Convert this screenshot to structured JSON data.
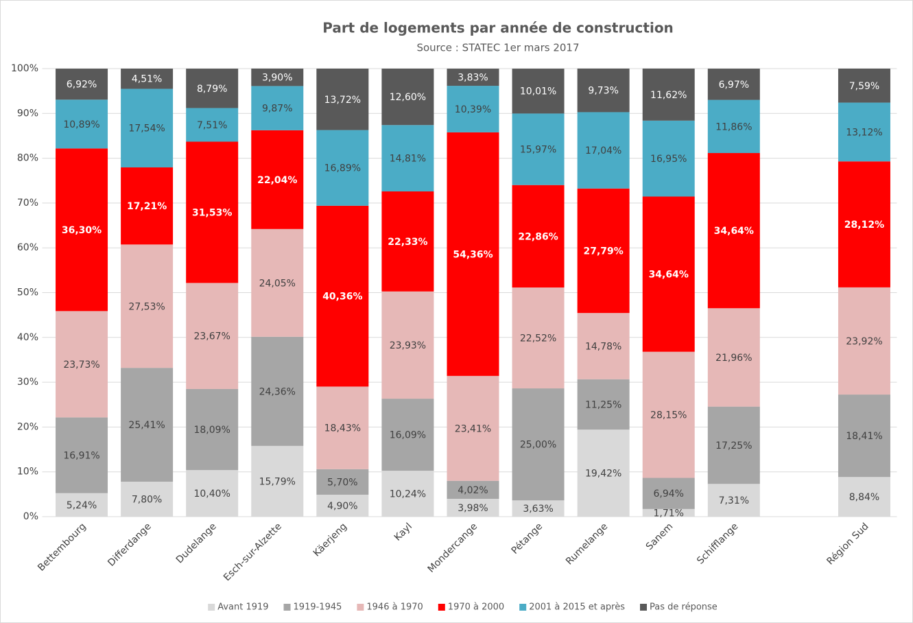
{
  "chart_data": {
    "type": "stacked_bar",
    "title": "Part de logements par année de construction",
    "subtitle": "Source : STATEC 1er mars 2017",
    "categories": [
      "Bettembourg",
      "Differdange",
      "Dudelange",
      "Esch-sur-Alzette",
      "Käerjeng",
      "Kayl",
      "Mondercange",
      "Pétange",
      "Rumelange",
      "Sanem",
      "Schifflange",
      null,
      "Région Sud"
    ],
    "ylim": [
      0,
      100
    ],
    "yticks": [
      {
        "value": 0,
        "label": "0%"
      },
      {
        "value": 10,
        "label": "10%"
      },
      {
        "value": 20,
        "label": "20%"
      },
      {
        "value": 30,
        "label": "30%"
      },
      {
        "value": 40,
        "label": "40%"
      },
      {
        "value": 50,
        "label": "50%"
      },
      {
        "value": 60,
        "label": "60%"
      },
      {
        "value": 70,
        "label": "70%"
      },
      {
        "value": 80,
        "label": "80%"
      },
      {
        "value": 90,
        "label": "90%"
      },
      {
        "value": 100,
        "label": "100%"
      }
    ],
    "grid": true,
    "legend": "bottom",
    "series": [
      {
        "name": "Avant 1919",
        "color": "#d9d9d9",
        "label_color": "#404040",
        "values": [
          5.24,
          7.8,
          10.4,
          15.79,
          4.9,
          10.24,
          3.98,
          3.63,
          19.42,
          1.71,
          7.31,
          null,
          8.84
        ],
        "value_labels": [
          "5,24%",
          "7,80%",
          "10,40%",
          "15,79%",
          "4,90%",
          "10,24%",
          "3,98%",
          "3,63%",
          "19,42%",
          "1,71%",
          "7,31%",
          null,
          "8,84%"
        ]
      },
      {
        "name": "1919-1945",
        "color": "#a6a6a6",
        "label_color": "#404040",
        "values": [
          16.91,
          25.41,
          18.09,
          24.36,
          5.7,
          16.09,
          4.02,
          25.0,
          11.25,
          6.94,
          17.25,
          null,
          18.41
        ],
        "value_labels": [
          "16,91%",
          "25,41%",
          "18,09%",
          "24,36%",
          "5,70%",
          "16,09%",
          "4,02%",
          "25,00%",
          "11,25%",
          "6,94%",
          "17,25%",
          null,
          "18,41%"
        ]
      },
      {
        "name": "1946 à 1970",
        "color": "#e6b8b7",
        "label_color": "#404040",
        "values": [
          23.73,
          27.53,
          23.67,
          24.05,
          18.43,
          23.93,
          23.41,
          22.52,
          14.78,
          28.15,
          21.96,
          null,
          23.92
        ],
        "value_labels": [
          "23,73%",
          "27,53%",
          "23,67%",
          "24,05%",
          "18,43%",
          "23,93%",
          "23,41%",
          "22,52%",
          "14,78%",
          "28,15%",
          "21,96%",
          null,
          "23,92%"
        ]
      },
      {
        "name": "1970 à 2000",
        "color": "#ff0000",
        "label_color": "#ffffff",
        "label_bold": true,
        "values": [
          36.3,
          17.21,
          31.53,
          22.04,
          40.36,
          22.33,
          54.36,
          22.86,
          27.79,
          34.64,
          34.64,
          null,
          28.12
        ],
        "value_labels": [
          "36,30%",
          "17,21%",
          "31,53%",
          "22,04%",
          "40,36%",
          "22,33%",
          "54,36%",
          "22,86%",
          "27,79%",
          "34,64%",
          "34,64%",
          null,
          "28,12%"
        ]
      },
      {
        "name": "2001 à 2015 et après",
        "color": "#4bacc6",
        "label_color": "#404040",
        "values": [
          10.89,
          17.54,
          7.51,
          9.87,
          16.89,
          14.81,
          10.39,
          15.97,
          17.04,
          16.95,
          11.86,
          null,
          13.12
        ],
        "value_labels": [
          "10,89%",
          "17,54%",
          "7,51%",
          "9,87%",
          "16,89%",
          "14,81%",
          "10,39%",
          "15,97%",
          "17,04%",
          "16,95%",
          "11,86%",
          null,
          "13,12%"
        ]
      },
      {
        "name": "Pas de réponse",
        "color": "#595959",
        "label_color": "#ffffff",
        "values": [
          6.92,
          4.51,
          8.79,
          3.9,
          13.72,
          12.6,
          3.83,
          10.01,
          9.73,
          11.62,
          6.97,
          null,
          7.59
        ],
        "value_labels": [
          "6,92%",
          "4,51%",
          "8,79%",
          "3,90%",
          "13,72%",
          "12,60%",
          "3,83%",
          "10,01%",
          "9,73%",
          "11,62%",
          "6,97%",
          null,
          "7,59%"
        ]
      }
    ]
  }
}
